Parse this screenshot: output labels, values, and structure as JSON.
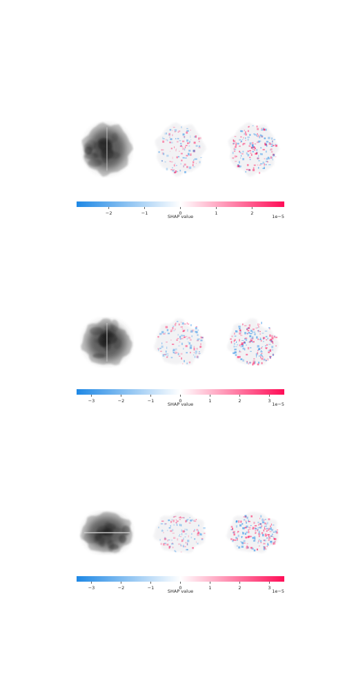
{
  "chart_data": [
    {
      "type": "heatmap",
      "panels": [
        "input-image",
        "shap-map-class-1",
        "shap-map-class-2"
      ],
      "colorbar": {
        "label": "SHAP value",
        "offset_text": "1e−5",
        "range": [
          -2.9,
          2.9
        ],
        "ticks": [
          -2,
          -1,
          0,
          1,
          2
        ],
        "tick_labels": [
          "−2",
          "−1",
          "0",
          "1",
          "2"
        ],
        "colors": {
          "negative": "#1e88e5",
          "zero": "#ffffff",
          "positive": "#ff0d57"
        }
      }
    },
    {
      "type": "heatmap",
      "panels": [
        "input-image",
        "shap-map-class-1",
        "shap-map-class-2"
      ],
      "colorbar": {
        "label": "SHAP value",
        "offset_text": "1e−5",
        "range": [
          -3.5,
          3.5
        ],
        "ticks": [
          -3,
          -2,
          -1,
          0,
          1,
          2,
          3
        ],
        "tick_labels": [
          "−3",
          "−2",
          "−1",
          "0",
          "1",
          "2",
          "3"
        ],
        "colors": {
          "negative": "#1e88e5",
          "zero": "#ffffff",
          "positive": "#ff0d57"
        }
      }
    },
    {
      "type": "heatmap",
      "panels": [
        "input-image",
        "shap-map-class-1",
        "shap-map-class-2"
      ],
      "colorbar": {
        "label": "SHAP value",
        "offset_text": "1e−5",
        "range": [
          -3.5,
          3.5
        ],
        "ticks": [
          -3,
          -2,
          -1,
          0,
          1,
          2,
          3
        ],
        "tick_labels": [
          "−3",
          "−2",
          "−1",
          "0",
          "1",
          "2",
          "3"
        ],
        "colors": {
          "negative": "#1e88e5",
          "zero": "#ffffff",
          "positive": "#ff0d57"
        }
      }
    }
  ]
}
